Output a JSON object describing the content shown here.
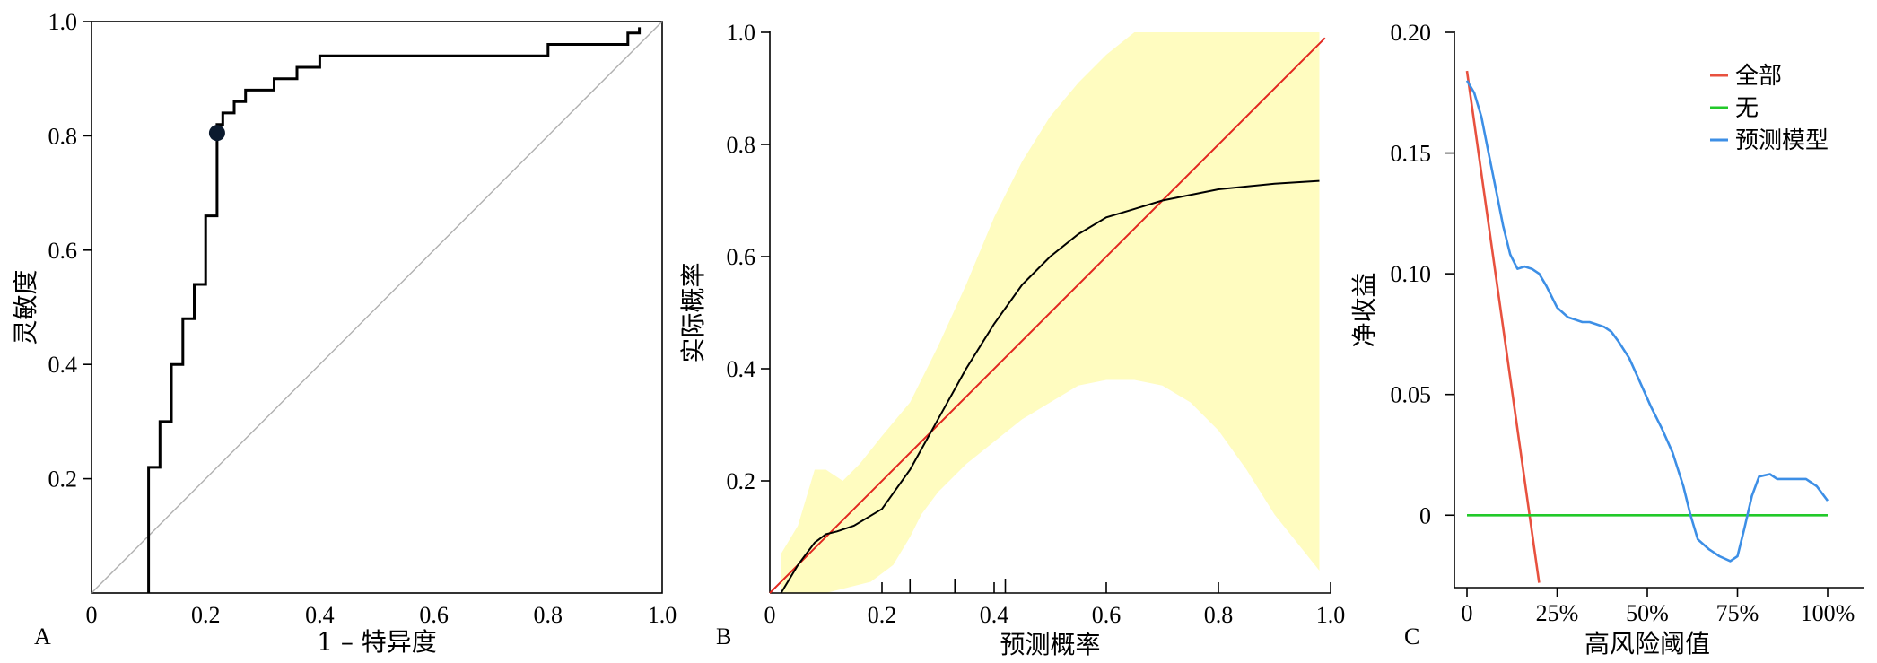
{
  "chart_data": [
    {
      "panel": "A",
      "type": "line",
      "xlabel": "1 – 特异度",
      "ylabel": "灵敏度",
      "xlim": [
        0,
        1
      ],
      "ylim": [
        0,
        1
      ],
      "x_ticks": [
        "0",
        "0.2",
        "0.4",
        "0.6",
        "0.8",
        "1.0"
      ],
      "y_ticks": [
        "0.2",
        "0.4",
        "0.6",
        "0.8",
        "1.0"
      ],
      "series": [
        {
          "color": "#000000",
          "points": [
            [
              0.1,
              0
            ],
            [
              0.1,
              0.22
            ],
            [
              0.12,
              0.22
            ],
            [
              0.12,
              0.3
            ],
            [
              0.14,
              0.3
            ],
            [
              0.14,
              0.4
            ],
            [
              0.16,
              0.4
            ],
            [
              0.16,
              0.48
            ],
            [
              0.18,
              0.48
            ],
            [
              0.18,
              0.54
            ],
            [
              0.2,
              0.54
            ],
            [
              0.2,
              0.66
            ],
            [
              0.22,
              0.66
            ],
            [
              0.22,
              0.82
            ],
            [
              0.23,
              0.82
            ],
            [
              0.23,
              0.84
            ],
            [
              0.25,
              0.84
            ],
            [
              0.25,
              0.86
            ],
            [
              0.27,
              0.86
            ],
            [
              0.27,
              0.88
            ],
            [
              0.32,
              0.88
            ],
            [
              0.32,
              0.9
            ],
            [
              0.36,
              0.9
            ],
            [
              0.36,
              0.92
            ],
            [
              0.4,
              0.92
            ],
            [
              0.4,
              0.94
            ],
            [
              0.8,
              0.94
            ],
            [
              0.8,
              0.96
            ],
            [
              0.94,
              0.96
            ],
            [
              0.94,
              0.98
            ],
            [
              0.96,
              0.98
            ],
            [
              0.96,
              0.99
            ]
          ]
        },
        {
          "color": "#b0b0b0",
          "points": [
            [
              0,
              0
            ],
            [
              1,
              1
            ]
          ]
        }
      ],
      "marker": {
        "x": 0.22,
        "y": 0.805
      }
    },
    {
      "panel": "B",
      "type": "line",
      "xlabel": "预测概率",
      "ylabel": "实际概率",
      "xlim": [
        0,
        1
      ],
      "ylim": [
        0,
        1
      ],
      "x_ticks": [
        "0",
        "0.2",
        "0.4",
        "0.6",
        "0.8",
        "1.0"
      ],
      "y_ticks": [
        "0.2",
        "0.4",
        "0.6",
        "0.8",
        "1.0"
      ],
      "minor_x_ticks": [
        0.25,
        0.33,
        0.42
      ],
      "band_color": "#fffcc0",
      "band_upper": [
        [
          0.02,
          0.07
        ],
        [
          0.05,
          0.12
        ],
        [
          0.08,
          0.22
        ],
        [
          0.1,
          0.22
        ],
        [
          0.13,
          0.2
        ],
        [
          0.16,
          0.23
        ],
        [
          0.2,
          0.28
        ],
        [
          0.25,
          0.34
        ],
        [
          0.3,
          0.44
        ],
        [
          0.35,
          0.55
        ],
        [
          0.4,
          0.67
        ],
        [
          0.45,
          0.77
        ],
        [
          0.5,
          0.85
        ],
        [
          0.55,
          0.91
        ],
        [
          0.6,
          0.96
        ],
        [
          0.65,
          1.0
        ],
        [
          0.98,
          1.0
        ]
      ],
      "band_lower": [
        [
          0.98,
          0.04
        ],
        [
          0.9,
          0.14
        ],
        [
          0.85,
          0.22
        ],
        [
          0.8,
          0.29
        ],
        [
          0.75,
          0.34
        ],
        [
          0.7,
          0.37
        ],
        [
          0.65,
          0.38
        ],
        [
          0.6,
          0.38
        ],
        [
          0.55,
          0.37
        ],
        [
          0.5,
          0.34
        ],
        [
          0.45,
          0.31
        ],
        [
          0.4,
          0.27
        ],
        [
          0.35,
          0.23
        ],
        [
          0.3,
          0.18
        ],
        [
          0.27,
          0.14
        ],
        [
          0.25,
          0.1
        ],
        [
          0.22,
          0.05
        ],
        [
          0.18,
          0.02
        ],
        [
          0.1,
          0.0
        ],
        [
          0.02,
          0.0
        ]
      ],
      "series": [
        {
          "color": "#000000",
          "points": [
            [
              0.02,
              0.0
            ],
            [
              0.05,
              0.05
            ],
            [
              0.08,
              0.09
            ],
            [
              0.1,
              0.105
            ],
            [
              0.12,
              0.11
            ],
            [
              0.15,
              0.12
            ],
            [
              0.2,
              0.15
            ],
            [
              0.25,
              0.22
            ],
            [
              0.3,
              0.31
            ],
            [
              0.35,
              0.4
            ],
            [
              0.4,
              0.48
            ],
            [
              0.45,
              0.55
            ],
            [
              0.5,
              0.6
            ],
            [
              0.55,
              0.64
            ],
            [
              0.6,
              0.67
            ],
            [
              0.65,
              0.685
            ],
            [
              0.7,
              0.7
            ],
            [
              0.8,
              0.72
            ],
            [
              0.9,
              0.73
            ],
            [
              0.98,
              0.735
            ]
          ]
        },
        {
          "color": "#e2271f",
          "points": [
            [
              0,
              0
            ],
            [
              0.99,
              0.99
            ]
          ]
        }
      ]
    },
    {
      "panel": "C",
      "type": "line",
      "xlabel": "高风险阈值",
      "ylabel": "净收益",
      "xlim": [
        0,
        1
      ],
      "ylim": [
        -0.03,
        0.2
      ],
      "x_ticks": [
        [
          "0",
          0
        ],
        [
          "25%",
          0.25
        ],
        [
          "50%",
          0.5
        ],
        [
          "75%",
          0.75
        ],
        [
          "100%",
          1.0
        ]
      ],
      "y_ticks": [
        [
          "0",
          0
        ],
        [
          "0.05",
          0.05
        ],
        [
          "0.10",
          0.1
        ],
        [
          "0.15",
          0.15
        ],
        [
          "0.20",
          0.2
        ]
      ],
      "legend_position": "top-right",
      "series": [
        {
          "name": "全部",
          "color": "#e8513f",
          "points": [
            [
              0,
              0.184
            ],
            [
              0.2,
              -0.028
            ]
          ]
        },
        {
          "name": "无",
          "color": "#22c92a",
          "points": [
            [
              0,
              0
            ],
            [
              1,
              0
            ]
          ]
        },
        {
          "name": "预测模型",
          "color": "#3d8fe6",
          "points": [
            [
              0,
              0.18
            ],
            [
              0.02,
              0.175
            ],
            [
              0.04,
              0.165
            ],
            [
              0.06,
              0.15
            ],
            [
              0.08,
              0.135
            ],
            [
              0.1,
              0.12
            ],
            [
              0.12,
              0.108
            ],
            [
              0.14,
              0.102
            ],
            [
              0.16,
              0.103
            ],
            [
              0.18,
              0.102
            ],
            [
              0.2,
              0.1
            ],
            [
              0.22,
              0.095
            ],
            [
              0.25,
              0.086
            ],
            [
              0.28,
              0.082
            ],
            [
              0.3,
              0.081
            ],
            [
              0.32,
              0.08
            ],
            [
              0.34,
              0.08
            ],
            [
              0.36,
              0.079
            ],
            [
              0.38,
              0.078
            ],
            [
              0.4,
              0.076
            ],
            [
              0.42,
              0.072
            ],
            [
              0.45,
              0.065
            ],
            [
              0.48,
              0.055
            ],
            [
              0.51,
              0.045
            ],
            [
              0.54,
              0.036
            ],
            [
              0.57,
              0.026
            ],
            [
              0.6,
              0.012
            ],
            [
              0.62,
              0.0
            ],
            [
              0.64,
              -0.01
            ],
            [
              0.67,
              -0.014
            ],
            [
              0.7,
              -0.017
            ],
            [
              0.73,
              -0.019
            ],
            [
              0.75,
              -0.017
            ],
            [
              0.77,
              -0.005
            ],
            [
              0.79,
              0.008
            ],
            [
              0.81,
              0.016
            ],
            [
              0.84,
              0.017
            ],
            [
              0.86,
              0.015
            ],
            [
              0.9,
              0.015
            ],
            [
              0.94,
              0.015
            ],
            [
              0.97,
              0.012
            ],
            [
              1.0,
              0.006
            ]
          ]
        }
      ]
    }
  ]
}
